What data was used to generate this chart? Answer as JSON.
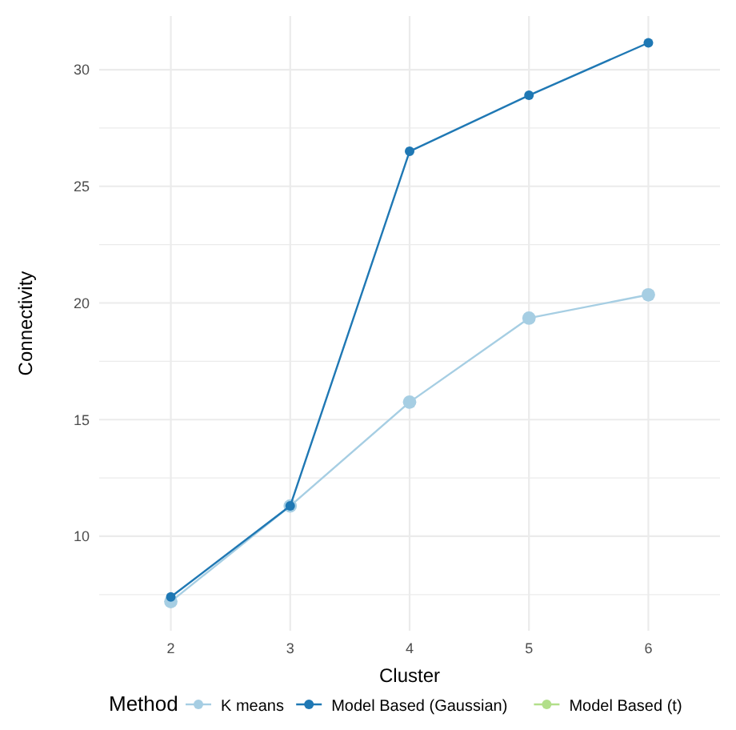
{
  "chart_data": {
    "type": "line",
    "xlabel": "Cluster",
    "ylabel": "Connectivity",
    "legend_title": "Method",
    "categories": [
      "2",
      "3",
      "4",
      "5",
      "6"
    ],
    "series": [
      {
        "name": "K means",
        "color": "#a6cee3",
        "values": [
          7.2,
          11.3,
          15.75,
          19.35,
          20.35
        ]
      },
      {
        "name": "Model Based (Gaussian)",
        "color": "#1f78b4",
        "values": [
          7.4,
          11.3,
          26.5,
          28.9,
          31.15
        ]
      },
      {
        "name": "Model Based (t)",
        "color": "#b2df8a",
        "values": [
          null,
          null,
          null,
          null,
          null
        ]
      }
    ],
    "ylim": [
      5.95,
      32.3
    ],
    "yticks": [
      {
        "value": 7.5,
        "label": null
      },
      10,
      {
        "value": 12.5,
        "label": null
      },
      15,
      {
        "value": 17.5,
        "label": null
      },
      20,
      {
        "value": 22.5,
        "label": null
      },
      25,
      {
        "value": 27.5,
        "label": null
      },
      30
    ],
    "grid": true,
    "legend": "bottom",
    "marker": "circle",
    "line_style": "solid"
  }
}
